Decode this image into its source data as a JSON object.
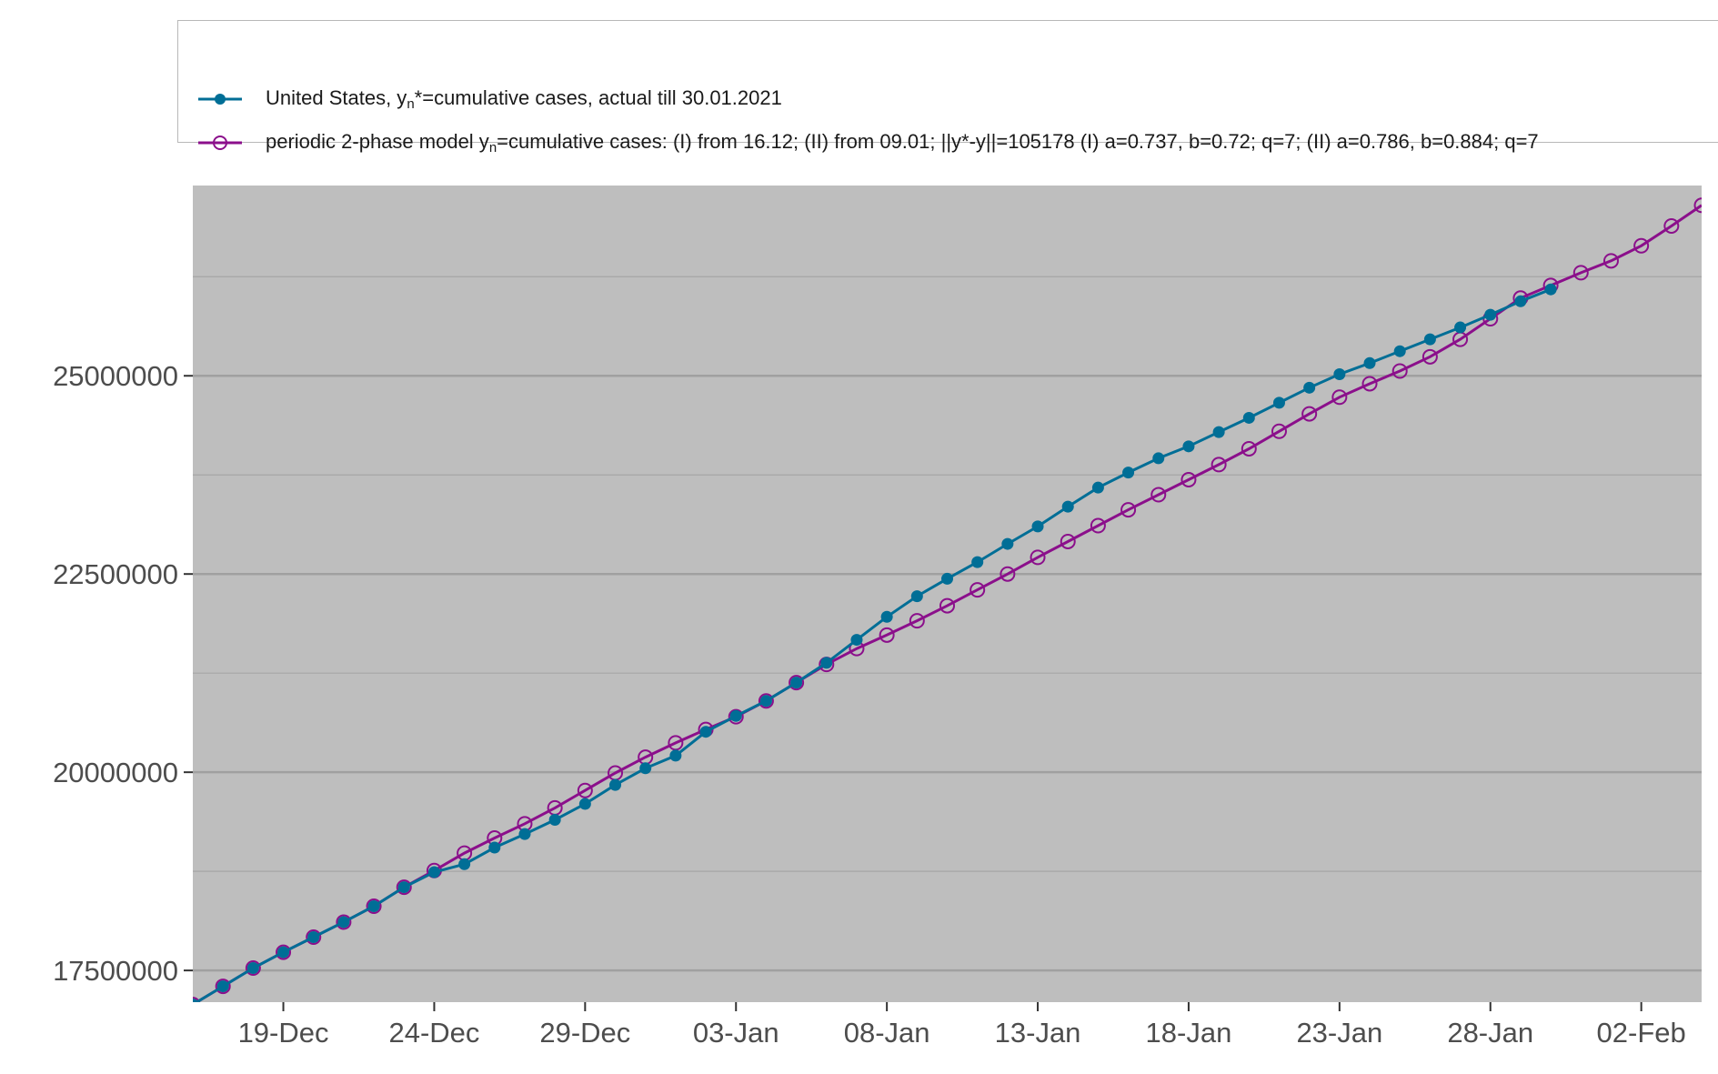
{
  "chart_data": {
    "type": "line",
    "title": "",
    "xlabel": "",
    "ylabel": "",
    "x_start": "17-Dec",
    "x_day_range": [
      -1,
      49
    ],
    "ylim": [
      17100000,
      27400000
    ],
    "grid": true,
    "y_major_ticks": [
      17500000,
      20000000,
      22500000,
      25000000
    ],
    "y_tick_labels": [
      "17500000",
      "20000000",
      "22500000",
      "25000000"
    ],
    "y_minor_ticks": [
      18750000,
      21250000,
      23750000,
      26250000
    ],
    "x_ticks": [
      {
        "day": 2,
        "label": "19-Dec"
      },
      {
        "day": 7,
        "label": "24-Dec"
      },
      {
        "day": 12,
        "label": "29-Dec"
      },
      {
        "day": 17,
        "label": "03-Jan"
      },
      {
        "day": 22,
        "label": "08-Jan"
      },
      {
        "day": 27,
        "label": "13-Jan"
      },
      {
        "day": 32,
        "label": "18-Jan"
      },
      {
        "day": 37,
        "label": "23-Jan"
      },
      {
        "day": 42,
        "label": "28-Jan"
      },
      {
        "day": 47,
        "label": "02-Feb"
      }
    ],
    "series": [
      {
        "name": "United States, actual",
        "legend_main": "United States, y",
        "legend_sub": "n",
        "legend_rest": "*=cumulative cases, actual till 30.01.2021",
        "color": "#006e96",
        "marker": "filled",
        "day_start": -1,
        "values": [
          17070000,
          17300000,
          17530000,
          17730000,
          17920000,
          18110000,
          18310000,
          18550000,
          18740000,
          18840000,
          19050000,
          19220000,
          19400000,
          19600000,
          19840000,
          20050000,
          20210000,
          20510000,
          20710000,
          20900000,
          21130000,
          21380000,
          21670000,
          21960000,
          22220000,
          22440000,
          22650000,
          22880000,
          23100000,
          23350000,
          23590000,
          23780000,
          23960000,
          24110000,
          24290000,
          24470000,
          24660000,
          24850000,
          25020000,
          25160000,
          25310000,
          25460000,
          25610000,
          25770000,
          25940000,
          26090000
        ]
      },
      {
        "name": "periodic 2-phase model",
        "legend_main": "periodic 2-phase model y",
        "legend_sub": "n",
        "legend_rest": "=cumulative cases: (I) from 16.12; (II) from 09.01; ||y*-y||=105178  (I) a=0.737, b=0.72; q=7; (II) a=0.786, b=0.884; q=7",
        "color": "#8b0f8b",
        "marker": "open",
        "day_start": -1,
        "values": [
          17070000,
          17300000,
          17530000,
          17730000,
          17920000,
          18110000,
          18310000,
          18550000,
          18760000,
          18980000,
          19170000,
          19350000,
          19550000,
          19770000,
          19990000,
          20190000,
          20370000,
          20540000,
          20700000,
          20900000,
          21130000,
          21360000,
          21560000,
          21730000,
          21910000,
          22100000,
          22300000,
          22500000,
          22710000,
          22910000,
          23110000,
          23310000,
          23500000,
          23690000,
          23880000,
          24080000,
          24300000,
          24520000,
          24730000,
          24900000,
          25060000,
          25240000,
          25460000,
          25720000,
          25980000,
          26140000,
          26300000,
          26450000,
          26640000,
          26890000,
          27150000
        ]
      }
    ]
  }
}
